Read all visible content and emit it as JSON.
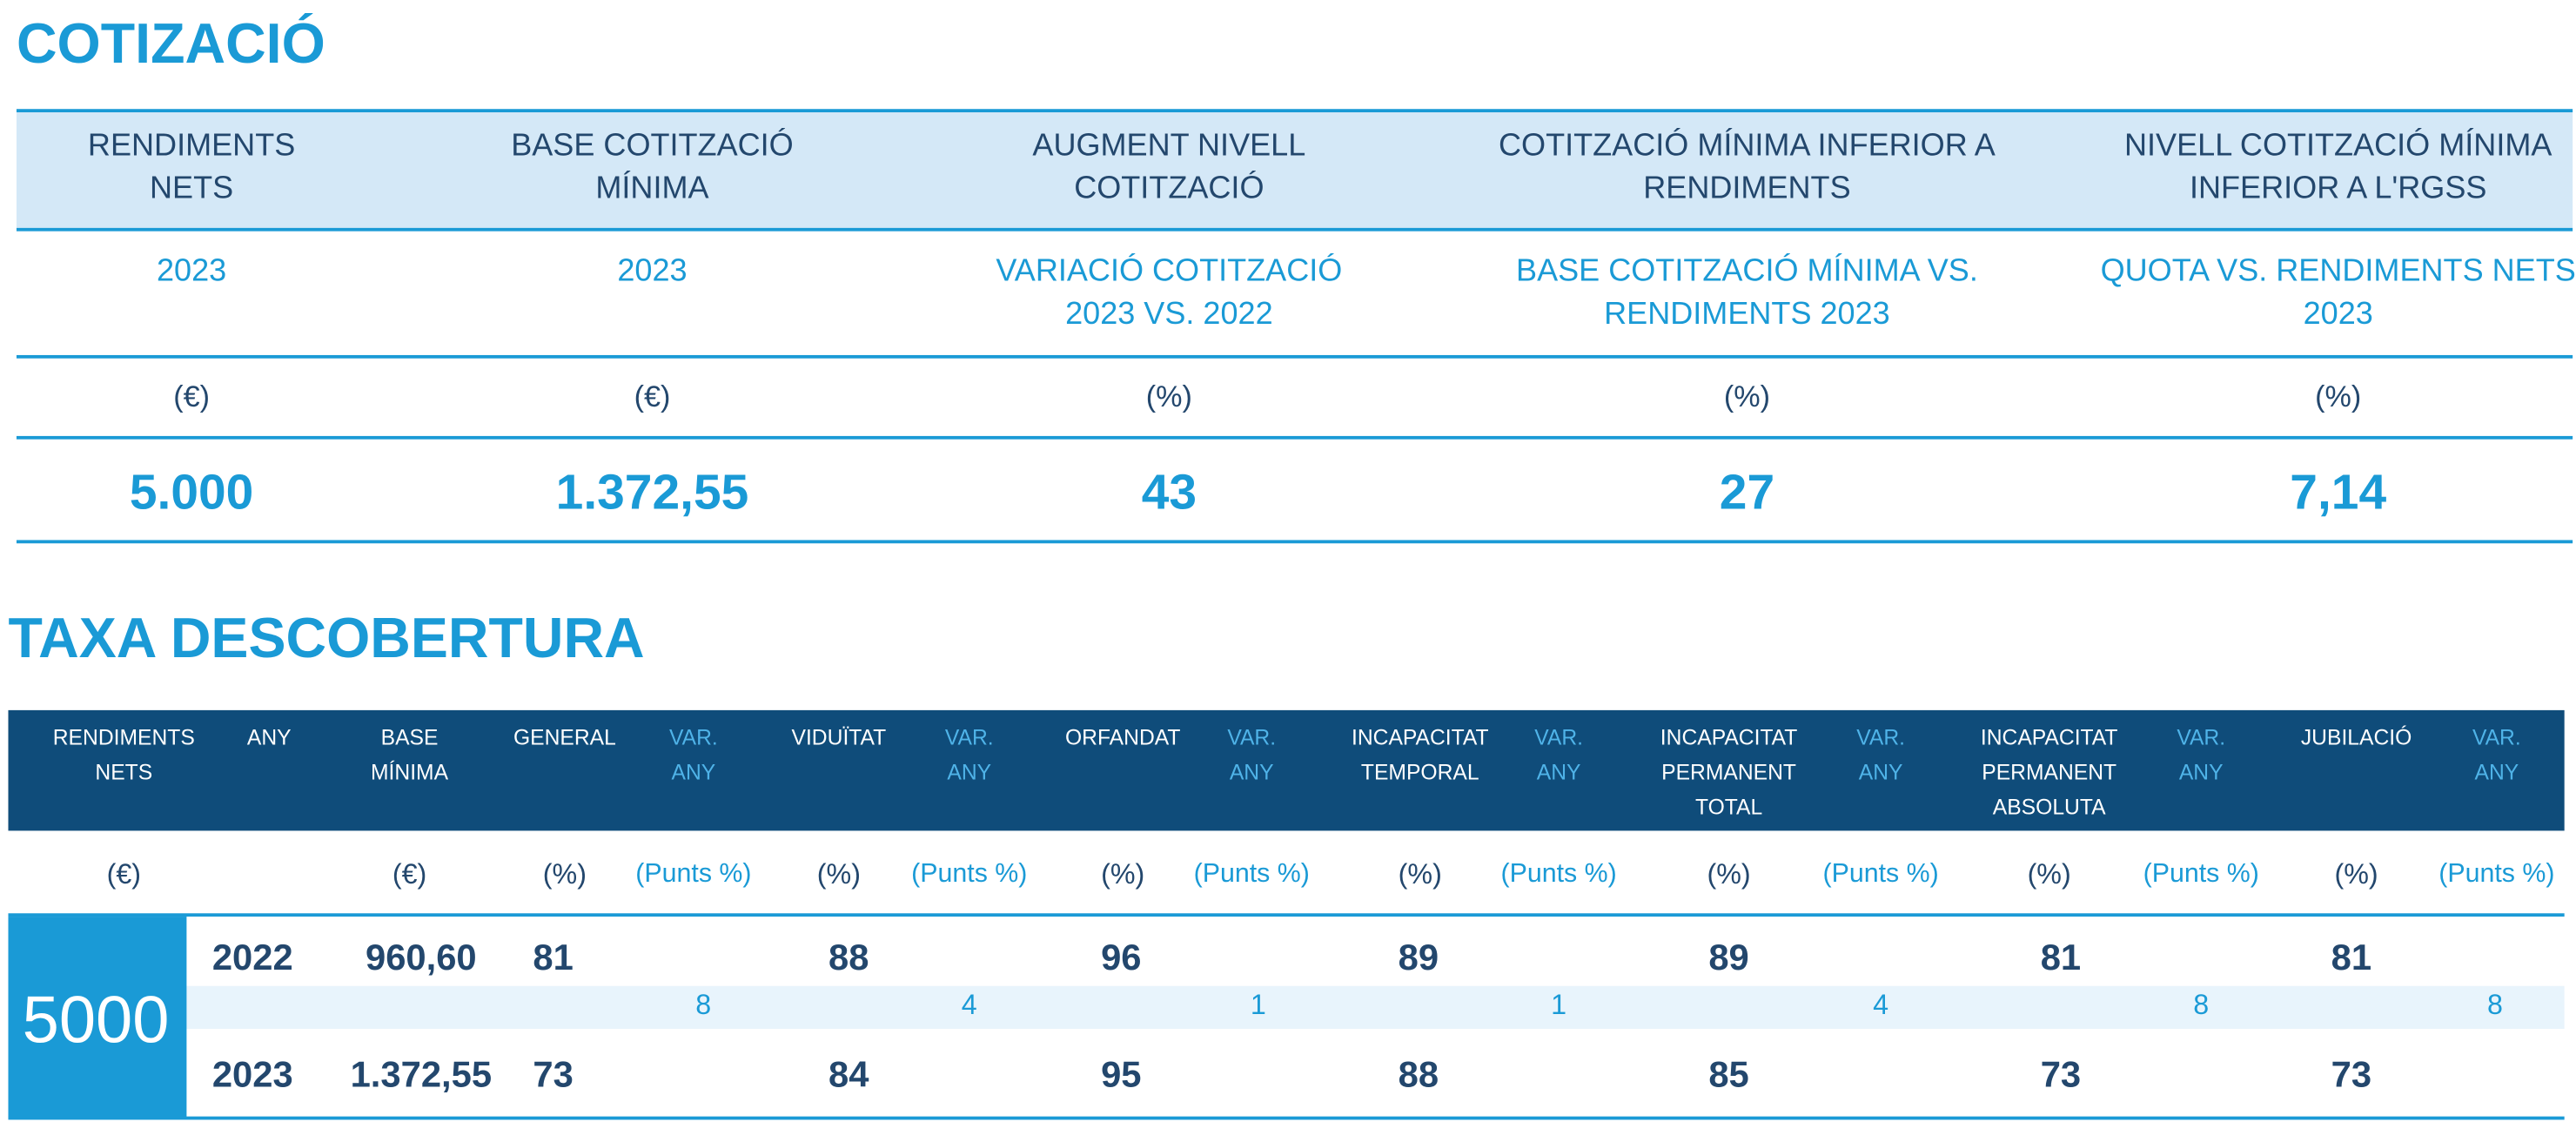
{
  "cotitzacio": {
    "title": "COTIZACIÓ",
    "headers": [
      "RENDIMENTS NETS",
      "BASE COTITZACIÓ MÍNIMA",
      "AUGMENT NIVELL COTITZACIÓ",
      "COTITZACIÓ MÍNIMA INFERIOR A RENDIMENTS",
      "NIVELL COTITZACIÓ MÍNIMA INFERIOR A L'RGSS"
    ],
    "subheaders": [
      "2023",
      "2023",
      "VARIACIÓ COTITZACIÓ 2023 VS. 2022",
      "BASE COTITZACIÓ MÍNIMA VS. RENDIMENTS 2023",
      "QUOTA VS. RENDIMENTS NETS 2023"
    ],
    "units": [
      "(€)",
      "(€)",
      "(%)",
      "(%)",
      "(%)"
    ],
    "values": [
      "5.000",
      "1.372,55",
      "43",
      "27",
      "7,14"
    ]
  },
  "taxa": {
    "title": "TAXA DESCOBERTURA",
    "headers": [
      "RENDIMENTS NETS",
      "ANY",
      "BASE MÍNIMA",
      "GENERAL",
      "VAR. ANY",
      "VIDUÏTAT",
      "VAR. ANY",
      "ORFANDAT",
      "VAR. ANY",
      "INCAPACITAT TEMPORAL",
      "VAR. ANY",
      "INCAPACITAT PERMANENT TOTAL",
      "VAR. ANY",
      "INCAPACITAT PERMANENT ABSOLUTA",
      "VAR. ANY",
      "JUBILACIÓ",
      "VAR. ANY"
    ],
    "units": [
      "(€)",
      null,
      "(€)",
      "(%)",
      "(Punts %)",
      "(%)",
      "(Punts %)",
      "(%)",
      "(Punts %)",
      "(%)",
      "(Punts %)",
      "(%)",
      "(Punts %)",
      "(%)",
      "(Punts %)",
      "(%)",
      "(Punts %)"
    ],
    "rendiments": "5000",
    "rows": [
      {
        "any": "2022",
        "base": "960,60",
        "values": [
          "81",
          "88",
          "96",
          "89",
          "89",
          "81",
          "81"
        ]
      },
      {
        "any": "2023",
        "base": "1.372,55",
        "values": [
          "73",
          "84",
          "95",
          "88",
          "85",
          "73",
          "73"
        ]
      }
    ],
    "variations": [
      "8",
      "4",
      "1",
      "1",
      "4",
      "8",
      "8"
    ]
  }
}
